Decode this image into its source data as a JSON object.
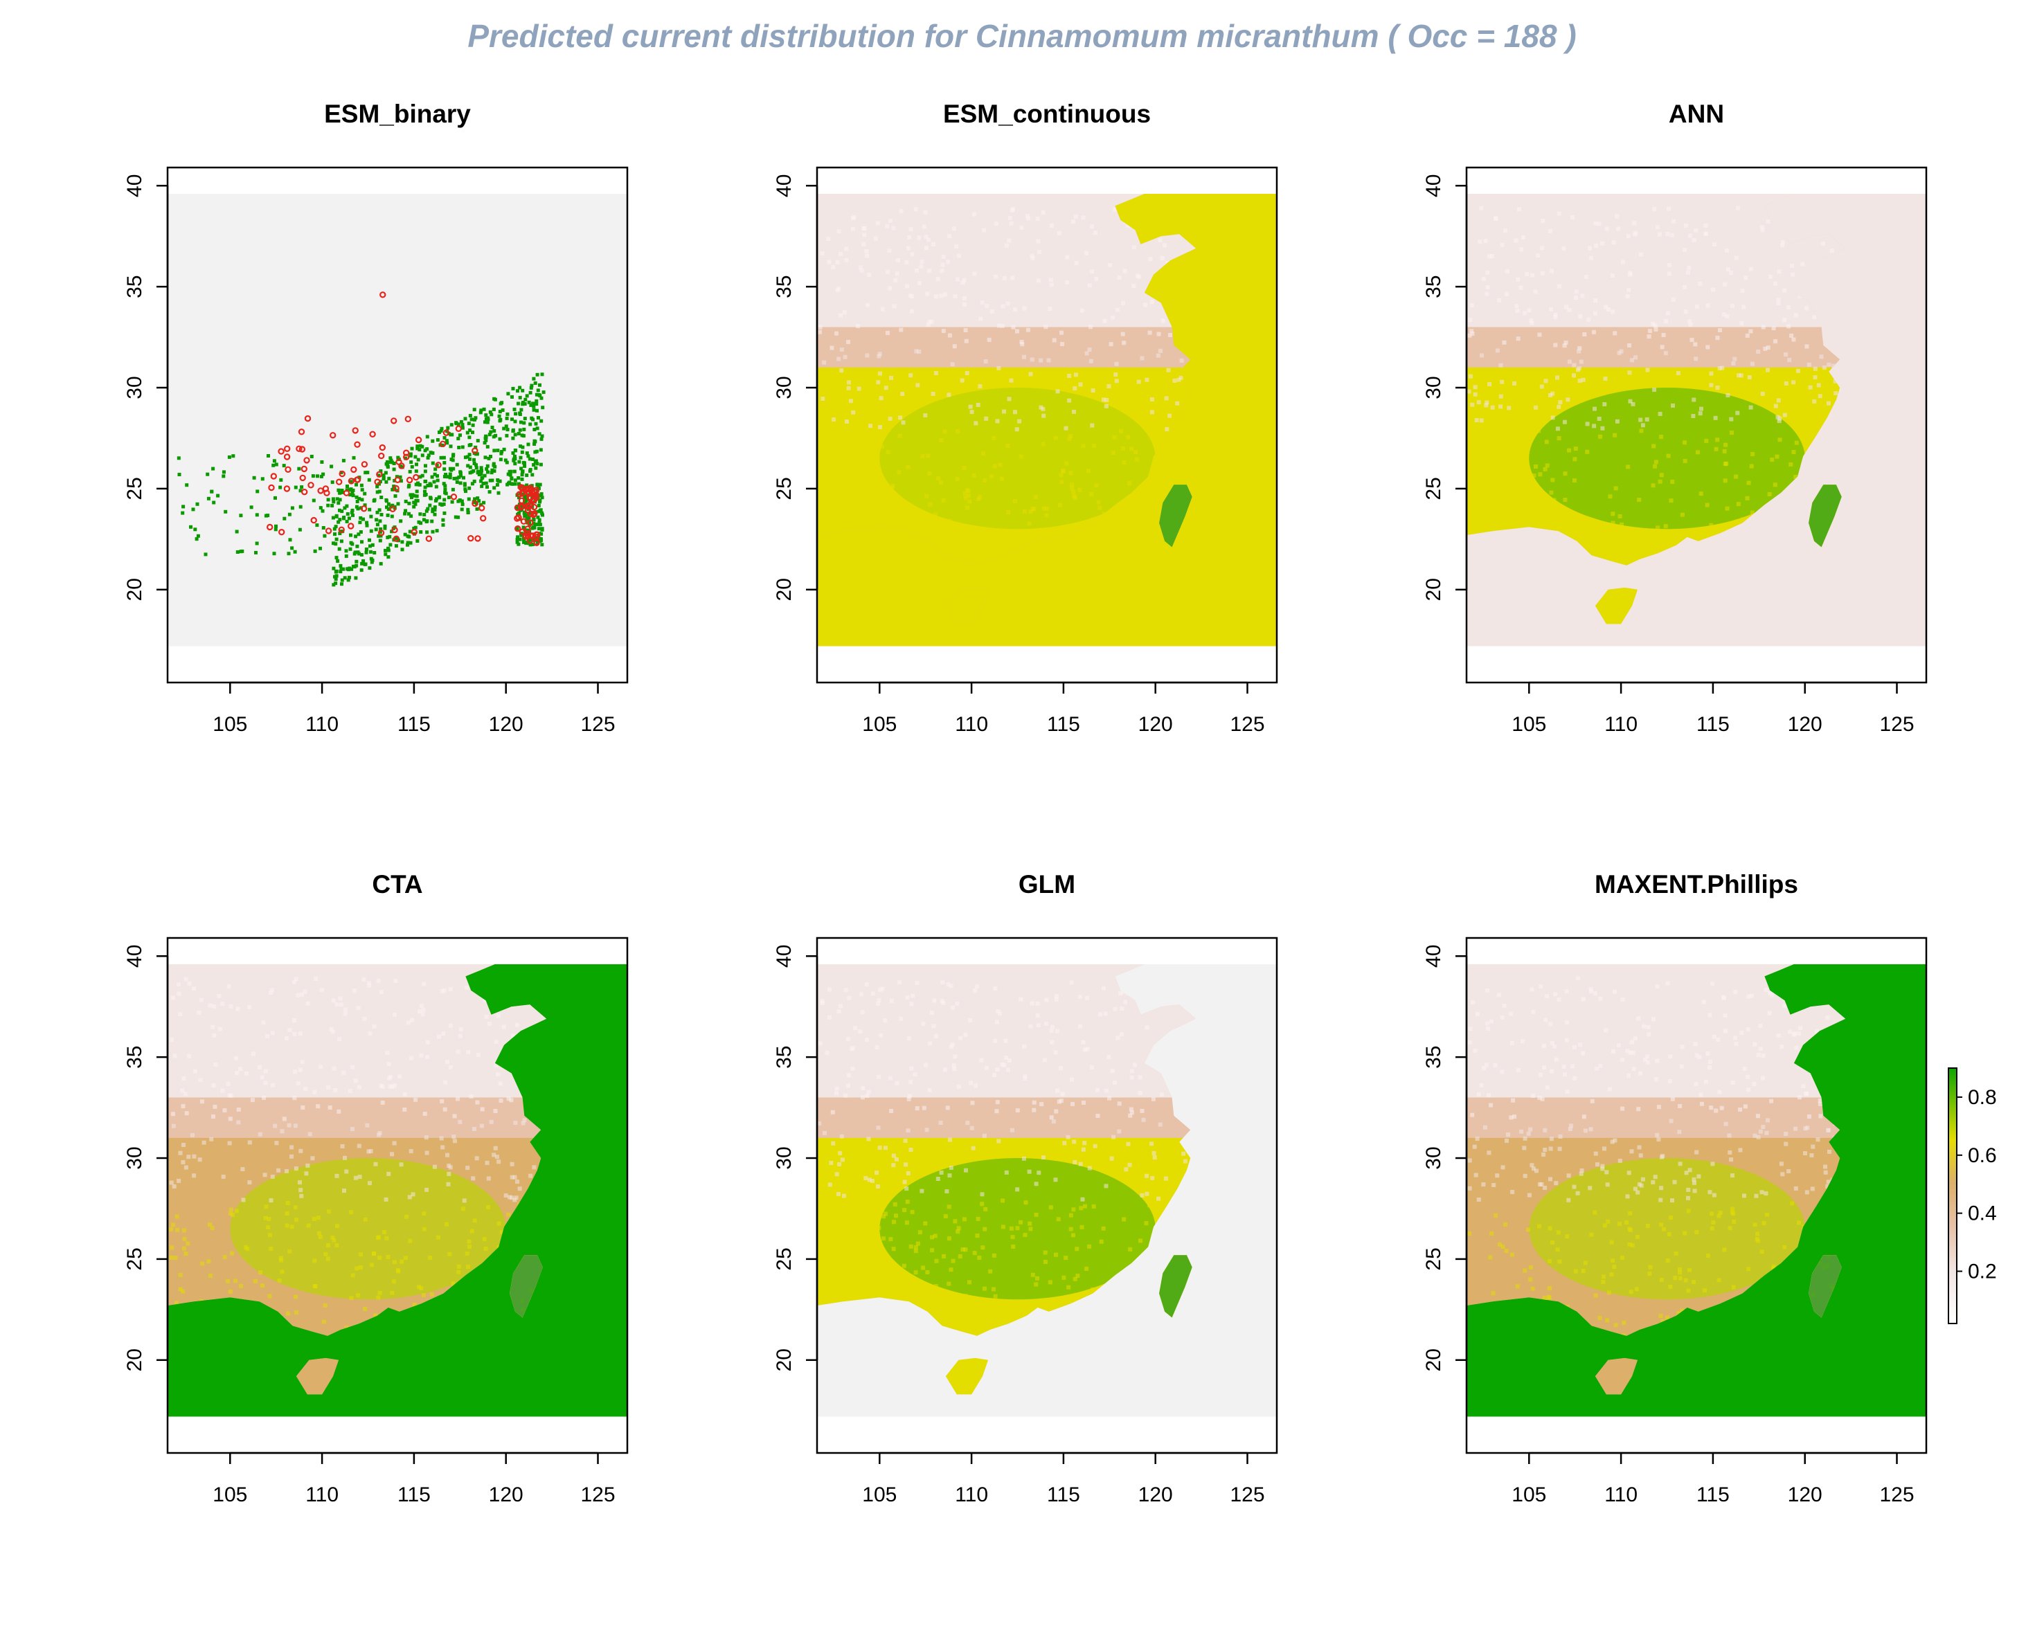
{
  "title": "Predicted current distribution for Cinnamomum micranthum  ( Occ =  188  )",
  "colors": {
    "title": "#8fa4bc",
    "frame": "#000000",
    "band_low": "#f2e6e4",
    "band_lowmid": "#e7c2a8",
    "band_mid": "#dcb06a",
    "band_midhigh": "#e4dd00",
    "band_high": "#0aa600",
    "absent_gray": "#f2f2f2",
    "presence_green": "#0a9a00",
    "occurrence_red": "#e8231a"
  },
  "panels": [
    {
      "name": "ESM_binary",
      "x_ticks": [
        "105",
        "110",
        "115",
        "120",
        "125"
      ],
      "y_ticks": [
        "20",
        "25",
        "30",
        "35",
        "40"
      ],
      "background": "absent_gray",
      "type": "binary"
    },
    {
      "name": "ESM_continuous",
      "x_ticks": [
        "105",
        "110",
        "115",
        "120",
        "125"
      ],
      "y_ticks": [
        "20",
        "25",
        "30",
        "35",
        "40"
      ],
      "background": "band_midhigh",
      "type": "continuous"
    },
    {
      "name": "ANN",
      "x_ticks": [
        "105",
        "110",
        "115",
        "120",
        "125"
      ],
      "y_ticks": [
        "20",
        "25",
        "30",
        "35",
        "40"
      ],
      "background": "band_low",
      "type": "continuous"
    },
    {
      "name": "CTA",
      "x_ticks": [
        "105",
        "110",
        "115",
        "120",
        "125"
      ],
      "y_ticks": [
        "20",
        "25",
        "30",
        "35",
        "40"
      ],
      "background": "band_high",
      "type": "continuous"
    },
    {
      "name": "GLM",
      "x_ticks": [
        "105",
        "110",
        "115",
        "120",
        "125"
      ],
      "y_ticks": [
        "20",
        "25",
        "30",
        "35",
        "40"
      ],
      "background": "absent_gray",
      "type": "continuous"
    },
    {
      "name": "MAXENT.Phillips",
      "x_ticks": [
        "105",
        "110",
        "115",
        "120",
        "125"
      ],
      "y_ticks": [
        "20",
        "25",
        "30",
        "35",
        "40"
      ],
      "background": "band_high",
      "type": "continuous"
    }
  ],
  "legend": {
    "ticks": [
      "0.2",
      "0.4",
      "0.6",
      "0.8"
    ]
  }
}
